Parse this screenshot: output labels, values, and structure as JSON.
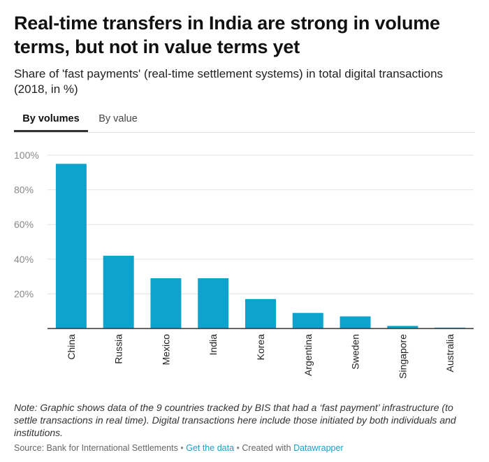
{
  "header": {
    "title": "Real-time transfers in India are strong in volume terms, but not in value terms yet",
    "subtitle": "Share of 'fast payments' (real-time settlement systems) in total digital transactions (2018, in %)"
  },
  "tabs": [
    {
      "label": "By volumes",
      "active": true
    },
    {
      "label": "By value",
      "active": false
    }
  ],
  "colors": {
    "bar": "#0ea3cc",
    "grid": "#e3e3e3",
    "axis": "#333333",
    "tick_label": "#888888",
    "link": "#1aa0c8"
  },
  "chart_data": {
    "type": "bar",
    "title": "Share of 'fast payments' in total digital transactions (2018, in %)",
    "xlabel": "",
    "ylabel": "",
    "categories": [
      "China",
      "Russia",
      "Mexico",
      "India",
      "Korea",
      "Argentina",
      "Sweden",
      "Singapore",
      "Australia"
    ],
    "values": [
      95,
      42,
      29,
      29,
      17,
      9,
      7,
      1.5,
      0.5
    ],
    "ylim": [
      0,
      100
    ],
    "yticks": [
      20,
      40,
      60,
      80,
      100
    ],
    "ytick_labels": [
      "20%",
      "40%",
      "60%",
      "80%",
      "100%"
    ],
    "grid": true
  },
  "note": "Note: Graphic shows data of the 9 countries tracked by BIS that had a ‘fast payment’ infrastructure (to settle transactions in real time). Digital transactions here include those initiated by both individuals and institutions.",
  "footer": {
    "source": "Source: Bank for International Settlements",
    "separator": "•",
    "get_data": "Get the data",
    "created_with": "Created with",
    "tool": "Datawrapper"
  }
}
